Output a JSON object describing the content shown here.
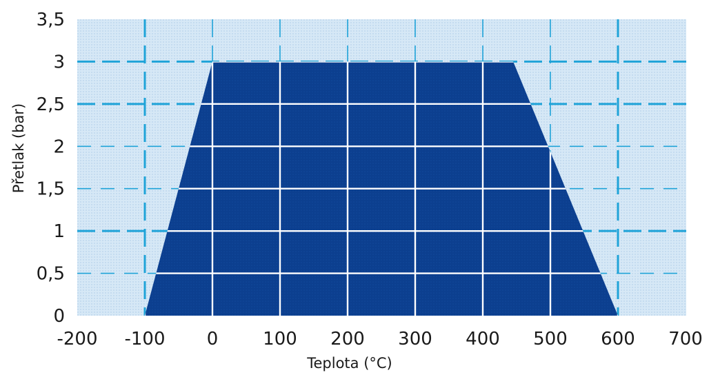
{
  "chart_data": {
    "type": "area",
    "xlabel": "Teplota (°C)",
    "ylabel": "Přetlak (bar)",
    "xlim": [
      -200,
      700
    ],
    "ylim": [
      0,
      3.5
    ],
    "x_ticks": [
      -200,
      -100,
      0,
      100,
      200,
      300,
      400,
      500,
      600,
      700
    ],
    "x_tick_labels": [
      "-200",
      "-100",
      "0",
      "100",
      "200",
      "300",
      "400",
      "500",
      "600",
      "700"
    ],
    "y_ticks": [
      0,
      0.5,
      1,
      1.5,
      2,
      2.5,
      3,
      3.5
    ],
    "y_tick_labels": [
      "0",
      "0,5",
      "1",
      "1,5",
      "2",
      "2,5",
      "3",
      "3,5"
    ],
    "grid": true,
    "series": [
      {
        "x": [
          -100,
          0,
          445,
          600
        ],
        "y": [
          0,
          3,
          3,
          0
        ]
      }
    ],
    "colors": {
      "plot_background": "#cfe3f3",
      "area_fill": "#0b3d8c",
      "grid_inside": "#ffffff",
      "grid_outside": "#1fa3d8"
    }
  }
}
